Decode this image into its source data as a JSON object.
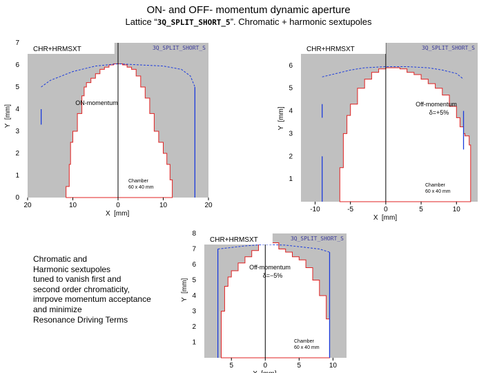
{
  "title": "ON- and OFF- momentum dynamic aperture",
  "subtitle_prefix": "Lattice “",
  "subtitle_lattice": "3Q_SPLIT_SHORT_5",
  "subtitle_suffix": "”.  Chromatic + harmonic  sextupoles",
  "notes": "Chromatic and\nHarmonic sextupoles\ntuned to vanish first and\nsecond order chromaticity,\nimrpove momentum acceptance\nand minimize\nResonance Driving Terms",
  "colors": {
    "background_region": "#c0c0c0",
    "stable_region": "#ffffff",
    "boundary": "#e02020",
    "chamber": "#1a3adc",
    "axis": "#000000"
  },
  "chart_data": [
    {
      "type": "area",
      "header_left": "CHR+HRMSXT",
      "header_right": "3Q_SPLIT_SHORT_S",
      "annotation": "ON-momentum",
      "chamber_line1": "Chamber",
      "chamber_line2": "60 x 40 mm",
      "xlabel": "X",
      "xunit": "[mm]",
      "ylabel": "Y",
      "yunit": "[mm]",
      "xlim": [
        -20,
        20
      ],
      "ylim": [
        0,
        7
      ],
      "x_ticks": [
        -20,
        -10,
        0,
        10,
        20
      ],
      "x_tick_labels": [
        "20",
        "10",
        "0",
        "10",
        "20"
      ],
      "y_ticks": [
        0,
        1,
        2,
        3,
        4,
        5,
        6,
        7
      ],
      "aperture": {
        "x": [
          -11.5,
          -11.5,
          -10.8,
          -10.5,
          -10.0,
          -9.0,
          -8.0,
          -7.5,
          -7.0,
          -6.0,
          -5.0,
          -4.0,
          -3.0,
          -2.0,
          -1.0,
          0.0,
          1.0,
          2.0,
          3.0,
          4.0,
          5.0,
          6.0,
          7.0,
          8.0,
          9.0,
          10.0,
          10.8,
          11.5,
          12.0,
          12.0
        ],
        "y": [
          0.0,
          0.5,
          1.5,
          2.5,
          3.0,
          3.8,
          4.6,
          5.0,
          5.2,
          5.4,
          5.6,
          5.8,
          5.9,
          6.0,
          6.05,
          6.05,
          6.0,
          5.9,
          5.8,
          5.5,
          5.0,
          4.5,
          3.8,
          3.0,
          2.5,
          2.0,
          1.5,
          0.8,
          0.4,
          0.0
        ]
      },
      "chamber_curve": {
        "x": [
          -17,
          -15,
          -10,
          -5,
          0,
          5,
          10,
          14,
          16,
          17
        ],
        "y": [
          5.0,
          5.3,
          5.7,
          5.95,
          6.05,
          6.0,
          5.95,
          5.8,
          5.5,
          5.0
        ]
      },
      "chamber_bars": [
        {
          "x": -17,
          "y0": 3.3,
          "y1": 4.0
        },
        {
          "x": 17,
          "y0": 0.0,
          "y1": 5.0
        }
      ]
    },
    {
      "type": "area",
      "header_left": "CHR+HRMSXT",
      "header_right": "3Q_SPLIT_SHORT_S",
      "annotation": "Off-momentum",
      "delta": "δ=+5%",
      "chamber_line1": "Chamber",
      "chamber_line2": "60 x 40 mm",
      "xlabel": "X",
      "xunit": "[mm]",
      "ylabel": "Y",
      "yunit": "[mm]",
      "xlim": [
        -12,
        13
      ],
      "ylim": [
        0,
        7
      ],
      "x_ticks": [
        -10,
        -5,
        0,
        5,
        10
      ],
      "x_tick_labels": [
        "-10",
        "-5",
        "0",
        "5",
        "10"
      ],
      "y_ticks": [
        1,
        2,
        3,
        4,
        5,
        6
      ],
      "aperture": {
        "x": [
          -6.5,
          -6.5,
          -6.0,
          -5.5,
          -5.0,
          -4.0,
          -3.0,
          -2.0,
          -1.0,
          0.0,
          1.0,
          2.0,
          3.0,
          4.0,
          5.0,
          6.0,
          7.0,
          8.0,
          9.0,
          10.0,
          10.5,
          11.0,
          11.2,
          11.8,
          12.0,
          12.0
        ],
        "y": [
          0.0,
          1.5,
          3.0,
          3.8,
          4.3,
          5.0,
          5.4,
          5.7,
          5.85,
          5.9,
          5.9,
          5.85,
          5.7,
          5.6,
          5.4,
          5.2,
          5.0,
          4.7,
          4.2,
          3.7,
          3.3,
          3.0,
          2.9,
          2.5,
          2.0,
          0.0
        ]
      },
      "chamber_curve": {
        "x": [
          -9,
          -7,
          -5,
          -3,
          0,
          3,
          6,
          8,
          10,
          11
        ],
        "y": [
          5.5,
          5.65,
          5.8,
          5.9,
          5.95,
          5.95,
          5.9,
          5.8,
          5.65,
          5.4
        ]
      },
      "chamber_bars": [
        {
          "x": -9,
          "y0": 3.7,
          "y1": 4.3
        },
        {
          "x": -9,
          "y0": 0.0,
          "y1": 2.0
        },
        {
          "x": 11,
          "y0": 2.3,
          "y1": 4.0
        }
      ]
    },
    {
      "type": "area",
      "header_left": "CHR+HRMSXT",
      "header_right": "3Q_SPLIT_SHORT_S",
      "annotation": "Off-momentum",
      "delta": "δ=−5%",
      "chamber_line1": "Chamber",
      "chamber_line2": "60 x 40 mm",
      "xlabel": "X",
      "xunit": "[mm]",
      "ylabel": "Y",
      "yunit": "[mm]",
      "xlim": [
        -9,
        12
      ],
      "ylim": [
        0,
        8
      ],
      "x_ticks": [
        -5,
        0,
        5,
        10
      ],
      "x_tick_labels": [
        "5",
        "0",
        "5",
        "10"
      ],
      "y_ticks": [
        1,
        2,
        3,
        4,
        5,
        6,
        7,
        8
      ],
      "aperture": {
        "x": [
          -6.5,
          -6.5,
          -6.0,
          -5.5,
          -5.0,
          -4.0,
          -3.0,
          -2.0,
          -1.0,
          0.0,
          1.0,
          2.0,
          3.0,
          4.0,
          5.0,
          6.0,
          7.0,
          8.0,
          9.0,
          9.5,
          9.5
        ],
        "y": [
          0.0,
          3.0,
          4.6,
          5.2,
          5.6,
          6.1,
          6.5,
          6.9,
          7.4,
          7.7,
          7.4,
          7.0,
          6.8,
          6.5,
          6.3,
          5.8,
          5.0,
          4.0,
          2.5,
          1.0,
          0.0
        ]
      },
      "chamber_curve": {
        "x": [
          -7,
          -5,
          -3,
          0,
          3,
          5,
          8,
          9.5
        ],
        "y": [
          7.0,
          7.1,
          7.2,
          7.3,
          7.25,
          7.15,
          7.0,
          6.8
        ]
      },
      "chamber_bars": [
        {
          "x": -7,
          "y0": 0.0,
          "y1": 7.0
        },
        {
          "x": 9.5,
          "y0": 0.0,
          "y1": 6.8
        }
      ]
    }
  ]
}
